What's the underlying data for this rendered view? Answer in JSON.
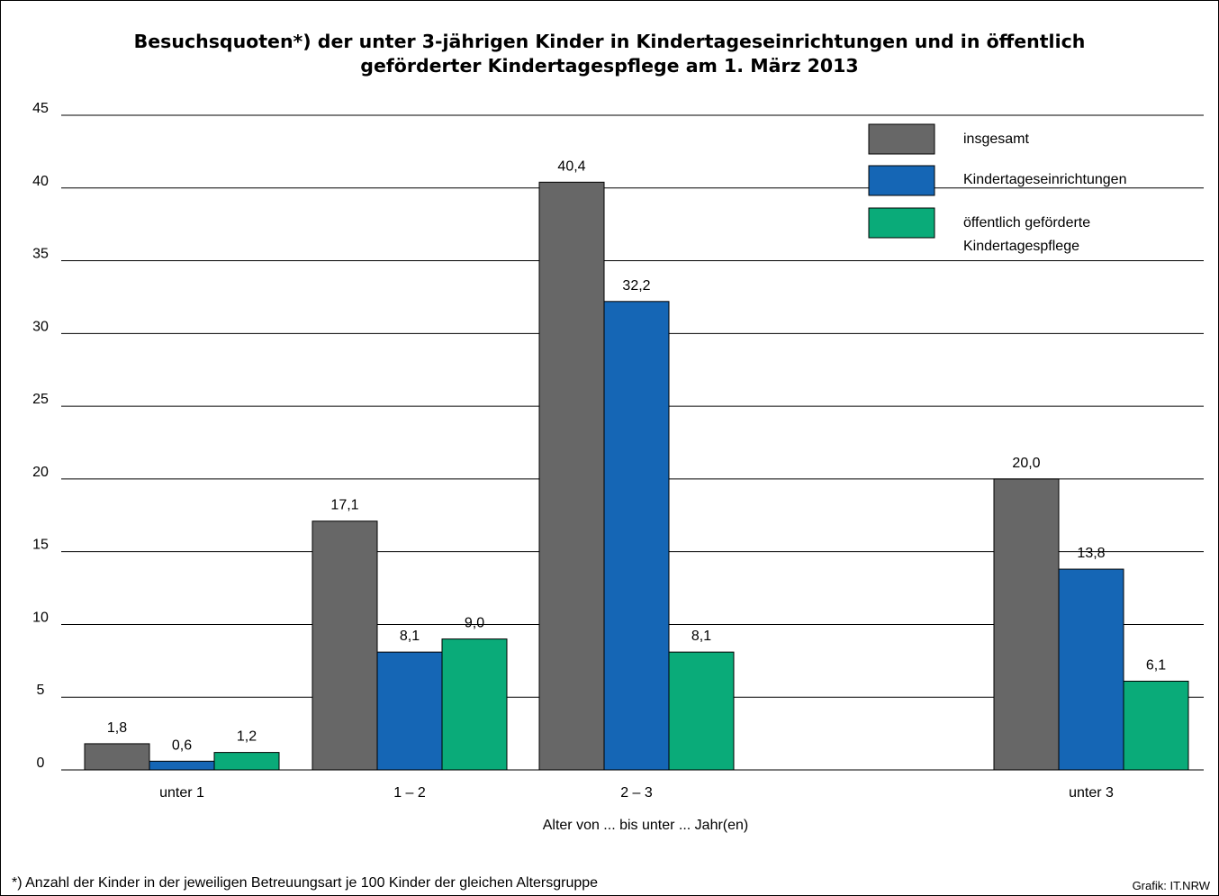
{
  "chart_data": {
    "type": "bar",
    "title_lines": [
      "Besuchsquoten*) der unter 3-jährigen Kinder in Kindertageseinrichtungen und in öffentlich",
      "geförderter Kindertagespflege am 1. März 2013"
    ],
    "categories": [
      "unter 1",
      "1 – 2",
      "2 – 3",
      "unter 3"
    ],
    "series": [
      {
        "name": "insgesamt",
        "values": [
          1.8,
          17.1,
          40.4,
          20.0
        ],
        "labels": [
          "1,8",
          "17,1",
          "40,4",
          "20,0"
        ],
        "color": "#676767"
      },
      {
        "name": "Kindertageseinrichtungen",
        "values": [
          0.6,
          8.1,
          32.2,
          13.8
        ],
        "labels": [
          "0,6",
          "8,1",
          "32,2",
          "13,8"
        ],
        "color": "#1566b5"
      },
      {
        "name_lines": [
          "öffentlich geförderte",
          "Kindertagespflege"
        ],
        "values": [
          1.2,
          9.0,
          8.1,
          6.1
        ],
        "labels": [
          "1,2",
          "9,0",
          "8,1",
          "6,1"
        ],
        "color": "#0aab79"
      }
    ],
    "xlabel": "Alter von ... bis unter ... Jahr(en)",
    "ylabel": "",
    "ylim": [
      0,
      45
    ],
    "yticks": [
      0,
      5,
      10,
      15,
      20,
      25,
      30,
      35,
      40,
      45
    ],
    "grid": true,
    "legend_position": "top-right",
    "footnote": "*) Anzahl der Kinder in der jeweiligen Betreuungsart je 100 Kinder der gleichen Altersgruppe",
    "credit": "Grafik: IT.NRW"
  }
}
